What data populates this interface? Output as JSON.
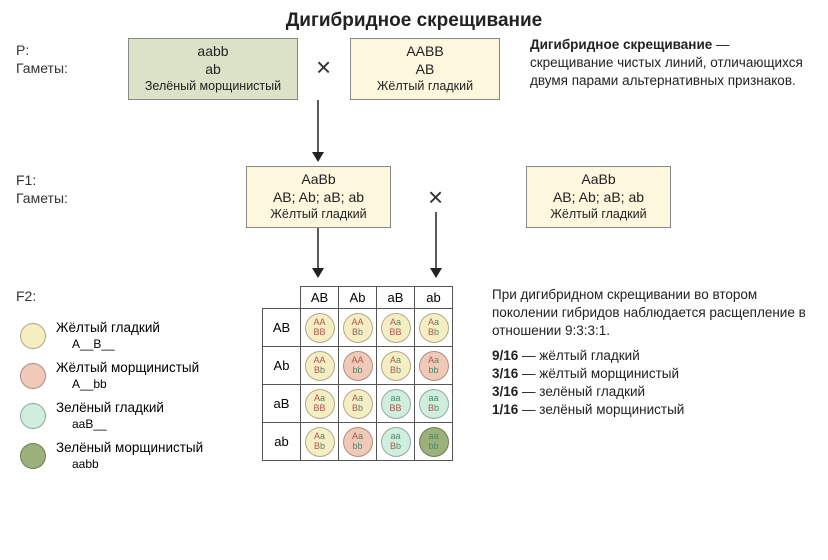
{
  "title": "Дигибридное скрещивание",
  "labels": {
    "P": "P:",
    "Gametes": "Гаметы:",
    "F1": "F1:",
    "F2": "F2:"
  },
  "parents": {
    "left": {
      "genotype": "aabb",
      "gamete": "ab",
      "phenotype": "Зелёный морщинистый",
      "bg": "#dbe2c7"
    },
    "right": {
      "genotype": "AABB",
      "gamete": "AB",
      "phenotype": "Жёлтый гладкий",
      "bg": "#fdf7de"
    }
  },
  "f1": {
    "left": {
      "genotype": "AaBb",
      "gametes": "AB; Ab; aB; ab",
      "phenotype": "Жёлтый гладкий",
      "bg": "#fdf7de"
    },
    "right": {
      "genotype": "AaBb",
      "gametes": "AB; Ab; aB; ab",
      "phenotype": "Жёлтый гладкий",
      "bg": "#fdf7de"
    }
  },
  "definition": {
    "head": "Дигибридное скрещивание",
    "body": "— скрещивание чистых линий, отличающихся двумя парами альтернативных признаков."
  },
  "colors": {
    "yellow_smooth": "#f5eec3",
    "yellow_wrinkled": "#f0c9b8",
    "green_smooth": "#cfeedd",
    "green_wrinkled": "#9bb07a",
    "allele_dom": "#b0544e",
    "allele_rec": "#4a8a6a"
  },
  "punnett": {
    "cols": [
      "AB",
      "Ab",
      "aB",
      "ab"
    ],
    "rows": [
      "AB",
      "Ab",
      "aB",
      "ab"
    ],
    "cells": [
      [
        {
          "l1": "AA",
          "l2": "BB",
          "pheno": "ys"
        },
        {
          "l1": "AA",
          "l2": "Bb",
          "pheno": "ys"
        },
        {
          "l1": "Aa",
          "l2": "BB",
          "pheno": "ys"
        },
        {
          "l1": "Aa",
          "l2": "Bb",
          "pheno": "ys"
        }
      ],
      [
        {
          "l1": "AA",
          "l2": "Bb",
          "pheno": "ys"
        },
        {
          "l1": "AA",
          "l2": "bb",
          "pheno": "yw"
        },
        {
          "l1": "Aa",
          "l2": "Bb",
          "pheno": "ys"
        },
        {
          "l1": "Aa",
          "l2": "bb",
          "pheno": "yw"
        }
      ],
      [
        {
          "l1": "Aa",
          "l2": "BB",
          "pheno": "ys"
        },
        {
          "l1": "Aa",
          "l2": "Bb",
          "pheno": "ys"
        },
        {
          "l1": "aa",
          "l2": "BB",
          "pheno": "gs"
        },
        {
          "l1": "aa",
          "l2": "Bb",
          "pheno": "gs"
        }
      ],
      [
        {
          "l1": "Aa",
          "l2": "Bb",
          "pheno": "ys"
        },
        {
          "l1": "Aa",
          "l2": "bb",
          "pheno": "yw"
        },
        {
          "l1": "aa",
          "l2": "Bb",
          "pheno": "gs"
        },
        {
          "l1": "aa",
          "l2": "bb",
          "pheno": "gw"
        }
      ]
    ]
  },
  "legend": [
    {
      "color_key": "yellow_smooth",
      "label": "Жёлтый гладкий",
      "geno": "A__B__"
    },
    {
      "color_key": "yellow_wrinkled",
      "label": "Жёлтый морщинистый",
      "geno": "A__bb"
    },
    {
      "color_key": "green_smooth",
      "label": "Зелёный гладкий",
      "geno": "aaB__"
    },
    {
      "color_key": "green_wrinkled",
      "label": "Зелёный морщинистый",
      "geno": "aabb"
    }
  ],
  "f2text": {
    "intro": "При дигибридном скрещивании во втором поколении гибридов наблюдается расщепление в отношении 9:3:3:1.",
    "ratios": [
      {
        "ratio": "9/16",
        "label": "— жёлтый гладкий"
      },
      {
        "ratio": "3/16",
        "label": "— жёлтый морщинистый"
      },
      {
        "ratio": "3/16",
        "label": "— зелёный гладкий"
      },
      {
        "ratio": "1/16",
        "label": "— зелёный морщинистый"
      }
    ]
  }
}
